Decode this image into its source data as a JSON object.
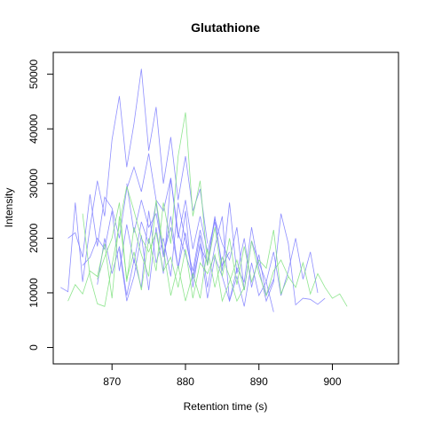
{
  "chart_data": {
    "type": "line",
    "title": "Glutathione",
    "xlabel": "Retention time (s)",
    "ylabel": "Intensity",
    "xlim": [
      862,
      909
    ],
    "ylim": [
      -3000,
      54000
    ],
    "x_ticks": [
      870,
      880,
      890,
      900
    ],
    "y_ticks": [
      0,
      10000,
      20000,
      30000,
      40000,
      50000
    ],
    "grid": false,
    "legend": "none",
    "colors": {
      "blue_series": "#7b7bff",
      "green_series": "#7be07b"
    },
    "series": [
      {
        "color": "#7b7bff",
        "x": [
          863,
          864,
          865,
          866,
          867,
          868,
          869,
          870,
          871,
          872,
          873,
          874,
          875,
          876,
          877,
          878,
          879,
          880,
          881,
          882,
          883
        ],
        "y": [
          11000,
          10200,
          26500,
          12000,
          22000,
          30500,
          24000,
          38000,
          46000,
          33000,
          41000,
          51000,
          36000,
          44000,
          30000,
          38500,
          27000,
          35000,
          25000,
          29000,
          19000
        ]
      },
      {
        "color": "#7b7bff",
        "x": [
          864,
          865,
          866,
          867,
          868,
          869,
          870,
          871,
          872,
          873,
          874,
          875,
          876,
          877,
          878,
          879,
          880,
          881,
          882,
          883,
          884,
          885,
          886
        ],
        "y": [
          20000,
          21000,
          16500,
          28000,
          18500,
          27500,
          25500,
          20000,
          29000,
          33000,
          28500,
          35500,
          27000,
          25000,
          31000,
          20000,
          27000,
          18000,
          24000,
          17500,
          23000,
          15000,
          17500
        ]
      },
      {
        "color": "#7b7bff",
        "x": [
          866,
          867,
          868,
          869,
          870,
          871,
          872,
          873,
          874,
          875,
          876,
          877,
          878,
          879,
          880,
          881,
          882,
          883,
          884,
          885,
          886,
          887,
          888,
          889,
          890,
          891,
          892
        ],
        "y": [
          15000,
          16500,
          20000,
          18000,
          25000,
          14000,
          22500,
          15500,
          23000,
          19000,
          26500,
          16500,
          24000,
          14500,
          21000,
          12500,
          18500,
          15500,
          24000,
          14000,
          26500,
          13500,
          20000,
          11000,
          17000,
          9500,
          12500
        ]
      },
      {
        "color": "#7b7bff",
        "x": [
          868,
          869,
          870,
          871,
          872,
          873,
          874,
          875,
          876,
          877,
          878,
          879,
          880,
          881,
          882,
          883,
          884,
          885,
          886,
          887,
          888,
          889,
          890,
          891,
          892,
          893,
          894,
          895,
          896,
          897,
          898
        ],
        "y": [
          11500,
          20000,
          13500,
          18500,
          9500,
          16000,
          11000,
          25000,
          15500,
          20000,
          13000,
          26500,
          19500,
          14000,
          21500,
          15000,
          23500,
          19000,
          16000,
          22000,
          10500,
          19500,
          15500,
          12000,
          17500,
          9500,
          14000,
          20000,
          12500,
          17500,
          10000
        ]
      },
      {
        "color": "#7b7bff",
        "x": [
          871,
          872,
          873,
          874,
          875,
          876,
          877,
          878,
          879,
          880,
          881,
          882,
          883,
          884,
          885,
          886,
          887,
          888,
          889,
          890,
          891,
          892,
          893,
          894,
          895,
          896,
          897,
          898,
          899
        ],
        "y": [
          18000,
          8500,
          13000,
          20500,
          10500,
          22000,
          13500,
          31000,
          21000,
          17000,
          13000,
          20500,
          11000,
          18500,
          24000,
          8500,
          14500,
          12000,
          22000,
          14500,
          8500,
          12000,
          24500,
          19000,
          7800,
          9000,
          8800,
          7900,
          9000
        ]
      },
      {
        "color": "#7b7bff",
        "x": [
          872,
          873,
          874,
          875,
          876,
          877,
          878,
          879,
          880,
          881,
          882,
          883,
          884,
          885,
          886,
          887,
          888,
          889,
          890,
          891,
          892
        ],
        "y": [
          30000,
          21000,
          27000,
          22000,
          24500,
          17000,
          22000,
          14500,
          25000,
          11000,
          19000,
          9000,
          16500,
          13000,
          8500,
          13000,
          7500,
          15500,
          9500,
          12000,
          6500
        ]
      },
      {
        "color": "#7be07b",
        "x": [
          864,
          865,
          866,
          867,
          868,
          869,
          870,
          871,
          872,
          873,
          874,
          875,
          876,
          877,
          878,
          879,
          880,
          881,
          882,
          883,
          884,
          885,
          886,
          887,
          888,
          889,
          890,
          891,
          892,
          893,
          894,
          895,
          896,
          897,
          898,
          899,
          900,
          901,
          902
        ],
        "y": [
          8500,
          11500,
          9800,
          14000,
          13000,
          19000,
          9000,
          24000,
          12500,
          17500,
          10500,
          20000,
          14000,
          26500,
          19000,
          35000,
          43000,
          24000,
          30500,
          15000,
          22000,
          13000,
          20000,
          11500,
          18500,
          12000,
          16000,
          14500,
          21500,
          9800,
          13000,
          11000,
          15500,
          9800,
          13500,
          11000,
          9000,
          9800,
          7500
        ]
      },
      {
        "color": "#7be07b",
        "x": [
          866,
          867,
          868,
          869,
          870,
          871,
          872,
          873,
          874,
          875,
          876,
          877,
          878,
          879,
          880,
          881,
          882,
          883,
          884,
          885,
          886,
          887,
          888,
          889,
          890,
          891,
          892,
          893,
          894
        ],
        "y": [
          24500,
          13000,
          8000,
          7500,
          15000,
          22500,
          29500,
          25000,
          20000,
          17500,
          21000,
          14000,
          16500,
          11000,
          18000,
          9000,
          15500,
          13500,
          17000,
          8500,
          12000,
          16000,
          10500,
          19500,
          13500,
          9500,
          14000,
          16000,
          13000
        ]
      },
      {
        "color": "#7be07b",
        "x": [
          868,
          869,
          870,
          871,
          872,
          873,
          874,
          875,
          876,
          877,
          878,
          879,
          880,
          881,
          882,
          883,
          884,
          885,
          886,
          887,
          888
        ],
        "y": [
          12500,
          16500,
          20000,
          26500,
          12000,
          22000,
          17000,
          13000,
          27000,
          18000,
          9500,
          15000,
          8500,
          13500,
          9000,
          18000,
          11000,
          16500,
          13000,
          8500,
          11000
        ]
      }
    ]
  }
}
